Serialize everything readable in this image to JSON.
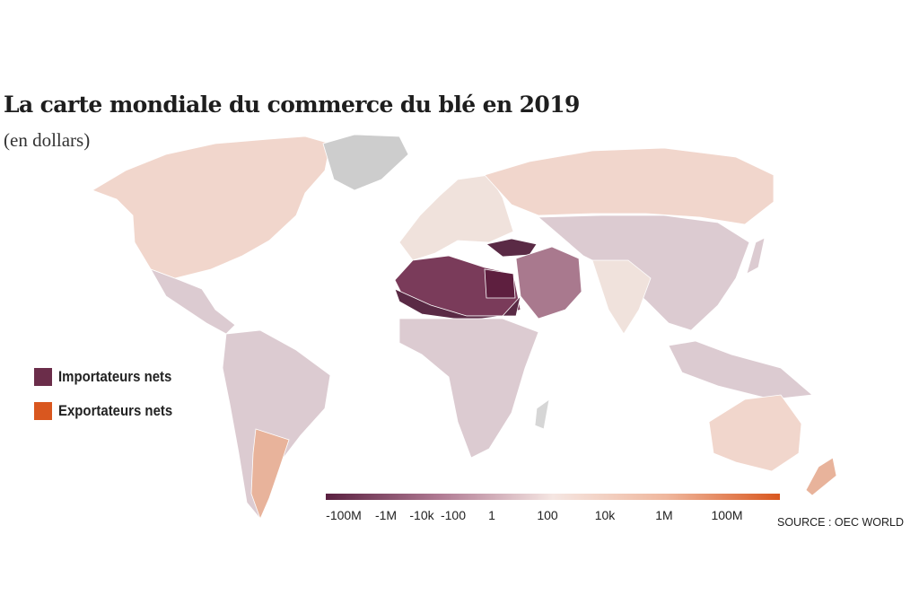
{
  "header": {
    "title": "La carte mondiale du commerce du blé en 2019",
    "subtitle": "(en dollars)"
  },
  "legend": {
    "items": [
      {
        "label": "Importateurs nets",
        "color": "#6b2d4a"
      },
      {
        "label": "Exportateurs nets",
        "color": "#d9571f"
      }
    ]
  },
  "color_scale": {
    "stops": [
      "#5a2040",
      "#b07a93",
      "#f5e6e2",
      "#efb79d",
      "#d9571f"
    ],
    "ticks": [
      "-100M",
      "-1M",
      "-10k",
      "-100",
      "1",
      "100",
      "10k",
      "1M",
      "100M"
    ]
  },
  "source": "SOURCE : OEC WORLD",
  "palette": {
    "no_data": "#d6d6d6",
    "greenland": "#cdcdcd",
    "light_exporter": "#f1d6cc",
    "mild_importer": "#dccbd1",
    "medium_importer": "#a9798e",
    "strong_importer": "#7a3b5a",
    "deep_importer": "#5a2a45",
    "darkest_importer": "#5e1f3f",
    "strong_exporter": "#e8b39b",
    "mild_exporter": "#f0e2dc"
  }
}
